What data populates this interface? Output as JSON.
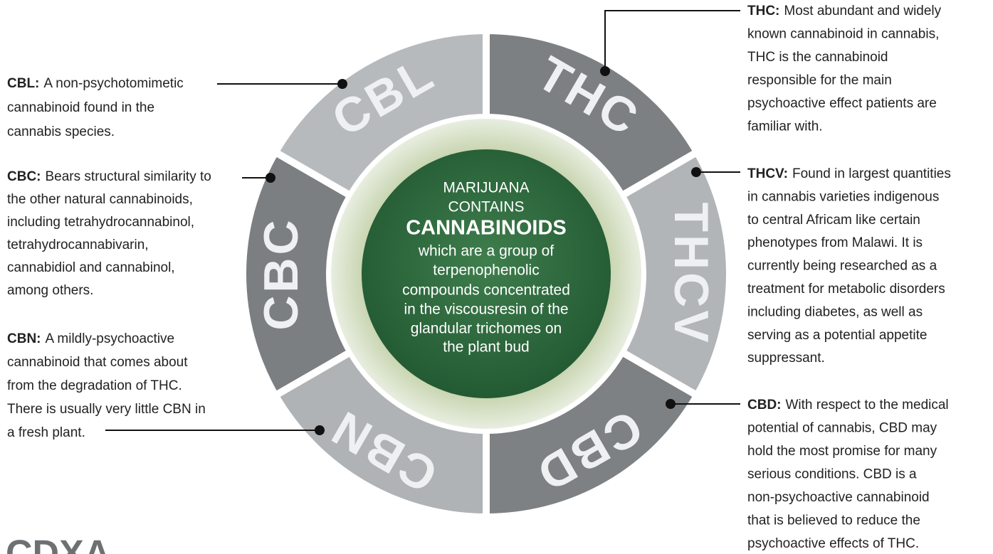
{
  "center": {
    "lines": [
      "MARIJUANA",
      "CONTAINS",
      "CANNABINOIDS",
      "which are a group of",
      "terpenophenolic",
      "compounds concentrated",
      "in the viscousresin of the",
      "glandular trichomes on",
      "the plant bud"
    ]
  },
  "segments": [
    {
      "name": "THC",
      "color": "#7c8082",
      "term": "THC:",
      "lines": [
        "Most abundant and widely",
        "known cannabinoid in cannabis,",
        "THC is the cannabinoid",
        "responsible for the main",
        "psychoactive effect patients are",
        "familiar with."
      ]
    },
    {
      "name": "THCV",
      "color": "#b1b5b7",
      "term": "THCV:",
      "lines": [
        "Found in largest quantities",
        "in cannabis varieties indigenous",
        "to central Africam like certain",
        "phenotypes from Malawi. It is",
        "currently being researched as a",
        "treatment for metabolic disorders",
        "including diabetes, as well as",
        "serving as a potential appetite",
        "suppressant."
      ]
    },
    {
      "name": "CBD",
      "color": "#7d8183",
      "term": "CBD:",
      "lines": [
        "With respect to the medical",
        "potential of cannabis, CBD may",
        "hold the most promise for many",
        "serious conditions. CBD is a",
        "non-psychoactive cannabinoid",
        "that is believed to reduce the",
        "psychoactive effects of THC."
      ]
    },
    {
      "name": "CBN",
      "color": "#afb3b5",
      "term": "CBN:",
      "lines": [
        "A mildly-psychoactive",
        "cannabinoid that comes about",
        "from the degradation of THC.",
        "There is usually very little CBN in",
        "a fresh plant."
      ]
    },
    {
      "name": "CBC",
      "color": "#7b7f81",
      "term": "CBC:",
      "lines": [
        "Bears structural similarity to",
        "the other natural cannabinoids,",
        "including tetrahydrocannabinol,",
        "tetrahydrocannabivarin,",
        "cannabidiol and cannabinol,",
        "among others."
      ]
    },
    {
      "name": "CBL",
      "color": "#b6babc",
      "term": "CBL:",
      "lines": [
        "A non-psychotomimetic",
        "cannabinoid found in the",
        "cannabis species."
      ]
    }
  ],
  "logo": "CDXA"
}
